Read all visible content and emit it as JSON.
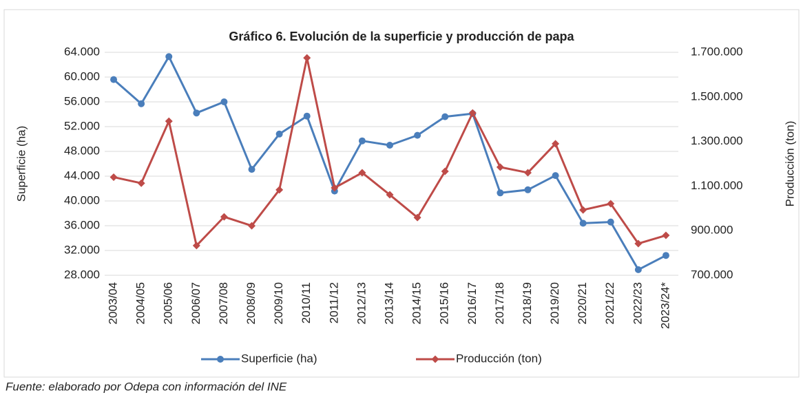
{
  "chart_data": {
    "type": "line",
    "title": "Gráfico 6. Evolución de la superficie y producción de papa",
    "y_label": "Superficie (ha)",
    "y2_label": "Producción (ton)",
    "source": "Fuente: elaborado por Odepa con información del INE",
    "categories": [
      "2003/04",
      "2004/05",
      "2005/06",
      "2006/07",
      "2007/08",
      "2008/09",
      "2009/10",
      "2010/11",
      "2011/12",
      "2012/13",
      "2013/14",
      "2014/15",
      "2015/16",
      "2016/17",
      "2017/18",
      "2018/19",
      "2019/20",
      "2020/21",
      "2021/22",
      "2022/23",
      "2023/24*"
    ],
    "series": [
      {
        "name": "Superficie (ha)",
        "color": "#4a7ebb",
        "marker": "circle",
        "axis": "y",
        "values": [
          59600,
          55700,
          63300,
          54200,
          56000,
          45100,
          50800,
          53700,
          41600,
          49700,
          49000,
          50600,
          53600,
          54100,
          41300,
          41800,
          44100,
          36400,
          36600,
          28900,
          31200
        ]
      },
      {
        "name": "Producción (ton)",
        "color": "#be4b48",
        "marker": "diamond",
        "axis": "y2",
        "values": [
          1140000,
          1113000,
          1391000,
          833000,
          962000,
          922000,
          1083000,
          1675000,
          1092000,
          1160000,
          1061000,
          959000,
          1166000,
          1428000,
          1185000,
          1160000,
          1290000,
          993000,
          1021000,
          842000,
          879000
        ]
      }
    ],
    "ylim": [
      28000,
      64000
    ],
    "yticks": [
      {
        "value": 28000,
        "label": "28.000"
      },
      {
        "value": 32000,
        "label": "32.000"
      },
      {
        "value": 36000,
        "label": "36.000"
      },
      {
        "value": 40000,
        "label": "40.000"
      },
      {
        "value": 44000,
        "label": "44.000"
      },
      {
        "value": 48000,
        "label": "48.000"
      },
      {
        "value": 52000,
        "label": "52.000"
      },
      {
        "value": 56000,
        "label": "56.000"
      },
      {
        "value": 60000,
        "label": "60.000"
      },
      {
        "value": 64000,
        "label": "64.000"
      }
    ],
    "y2lim": [
      700000,
      1700000
    ],
    "y2ticks": [
      {
        "value": 700000,
        "label": "700.000"
      },
      {
        "value": 900000,
        "label": "900.000"
      },
      {
        "value": 1100000,
        "label": "1.100.000"
      },
      {
        "value": 1300000,
        "label": "1.300.000"
      },
      {
        "value": 1500000,
        "label": "1.500.000"
      },
      {
        "value": 1700000,
        "label": "1.700.000"
      }
    ],
    "grid": true,
    "legend": "bottom"
  }
}
